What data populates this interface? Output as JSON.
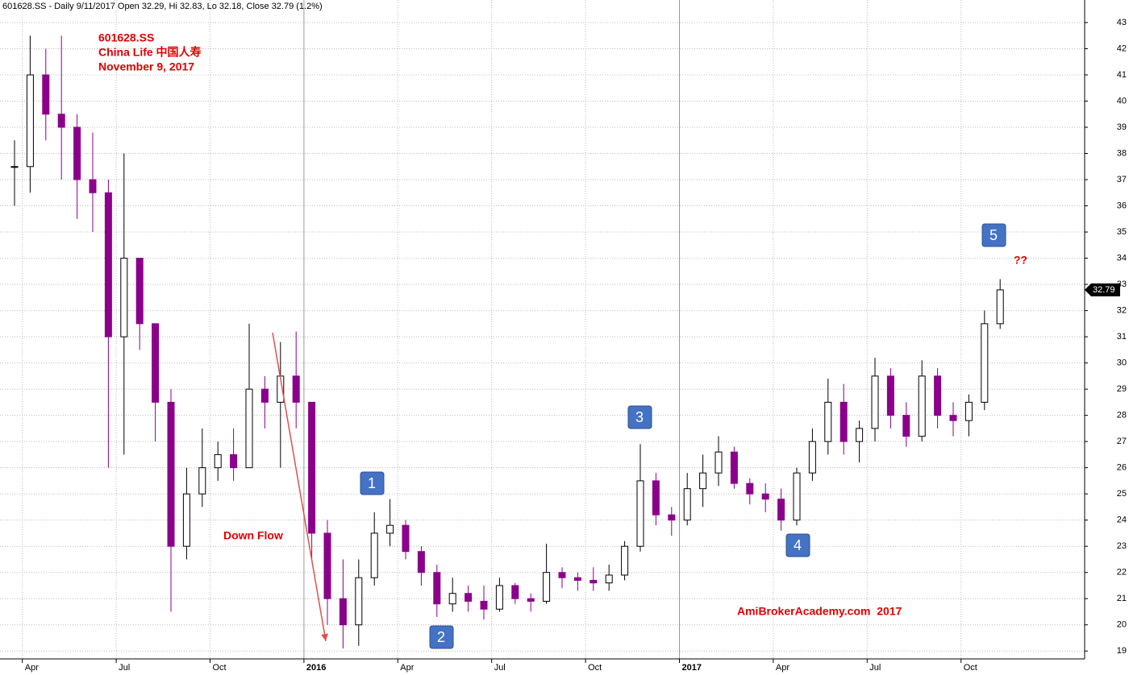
{
  "chart_data": {
    "type": "candlestick",
    "header": "601628.SS - Daily 9/11/2017 Open 32.29, Hi 32.83, Lo 32.18, Close 32.79 (1.2%)",
    "title_lines": [
      "601628.SS",
      "China Life 中国人寿",
      "November 9, 2017"
    ],
    "annotations": {
      "down_flow": "Down Flow",
      "points": [
        "1",
        "2",
        "3",
        "4",
        "5"
      ],
      "question": "??",
      "watermark": "AmiBrokerAcademy.com  2017"
    },
    "categories": [
      null,
      "Apr",
      null,
      null,
      null,
      null,
      null,
      "Jul",
      null,
      null,
      null,
      null,
      null,
      "Oct",
      null,
      null,
      null,
      null,
      null,
      "2016",
      null,
      null,
      null,
      null,
      null,
      "Apr",
      null,
      null,
      null,
      null,
      null,
      "Jul",
      null,
      null,
      null,
      null,
      null,
      "Oct",
      null,
      null,
      null,
      null,
      null,
      "2017",
      null,
      null,
      null,
      null,
      null,
      "Apr",
      null,
      null,
      null,
      null,
      null,
      "Jul",
      null,
      null,
      null,
      null,
      null,
      "Oct",
      null,
      null
    ],
    "open": [
      37.5,
      37.5,
      41,
      39.5,
      39,
      37,
      36.5,
      31,
      34,
      31.5,
      28.5,
      23,
      25,
      26,
      26.5,
      26,
      29,
      28.5,
      29.5,
      28.5,
      23.5,
      21,
      20,
      21.8,
      23.5,
      23.8,
      22.8,
      22,
      20.8,
      21.2,
      20.9,
      20.6,
      21.5,
      21,
      20.9,
      22,
      21.8,
      21.7,
      21.6,
      21.9,
      23,
      25.5,
      24.2,
      24,
      25.2,
      25.8,
      26.6,
      25.4,
      25,
      24.8,
      24,
      25.8,
      27,
      28.5,
      27,
      27.5,
      29.5,
      28,
      27.2,
      29.5,
      28,
      27.8,
      28.5,
      31.5
    ],
    "high": [
      38.5,
      42.5,
      42,
      42.5,
      39.5,
      38.8,
      37,
      38,
      34,
      31.5,
      29,
      26,
      27.5,
      27,
      27.5,
      31.5,
      29.5,
      30.8,
      31.2,
      28.5,
      24,
      22.5,
      22.5,
      24.3,
      24.8,
      24,
      23,
      22.3,
      21.8,
      21.5,
      21.5,
      21.8,
      21.6,
      21.2,
      23.1,
      22.2,
      22,
      22.2,
      22.3,
      23.2,
      26.9,
      25.8,
      24.5,
      25.8,
      26.5,
      27.2,
      26.8,
      25.6,
      25.4,
      25.2,
      26,
      27.5,
      29.4,
      29.2,
      27.8,
      30.2,
      29.8,
      28.5,
      30.1,
      29.8,
      28.5,
      28.8,
      32,
      33.2
    ],
    "low": [
      36,
      36.5,
      38.5,
      37,
      35.5,
      35,
      26,
      26.5,
      30.5,
      27,
      20.5,
      22.5,
      24.5,
      25.5,
      25.5,
      26,
      27.5,
      26,
      27.5,
      22.5,
      20,
      19.1,
      19.2,
      21.5,
      23,
      22.5,
      21.5,
      20.3,
      20.5,
      20.5,
      20.2,
      20.5,
      20.8,
      20.5,
      20.8,
      21.4,
      21.3,
      21.3,
      21.3,
      21.7,
      22.8,
      23.8,
      23.4,
      23.8,
      24.5,
      25.3,
      25.2,
      24.6,
      24.3,
      23.6,
      23.8,
      25.5,
      26.5,
      26.5,
      26.2,
      27,
      27.5,
      26.8,
      27,
      27.5,
      27.2,
      27.2,
      28.2,
      31.3
    ],
    "close": [
      37.5,
      41,
      39.5,
      39,
      37,
      36.5,
      31,
      34,
      31.5,
      28.5,
      23,
      25,
      26,
      26.5,
      26,
      29,
      28.5,
      29.5,
      28.5,
      23.5,
      21,
      20,
      21.8,
      23.5,
      23.8,
      22.8,
      22,
      20.8,
      21.2,
      20.9,
      20.6,
      21.5,
      21,
      20.9,
      22,
      21.8,
      21.7,
      21.6,
      21.9,
      23,
      25.5,
      24.2,
      24,
      25.2,
      25.8,
      26.6,
      25.4,
      25,
      24.8,
      24,
      25.8,
      27,
      28.5,
      27,
      27.5,
      29.5,
      28,
      27.2,
      29.5,
      28,
      27.8,
      28.5,
      31.5,
      32.79
    ],
    "up_color": "#000000",
    "down_color": "#8b008b",
    "ylim": [
      18.7,
      43.86
    ],
    "yticks": [
      19,
      20,
      21,
      22,
      23,
      24,
      25,
      26,
      27,
      28,
      29,
      30,
      31,
      32,
      33,
      34,
      35,
      36,
      37,
      38,
      39,
      40,
      41,
      42,
      43
    ],
    "grid": true
  }
}
